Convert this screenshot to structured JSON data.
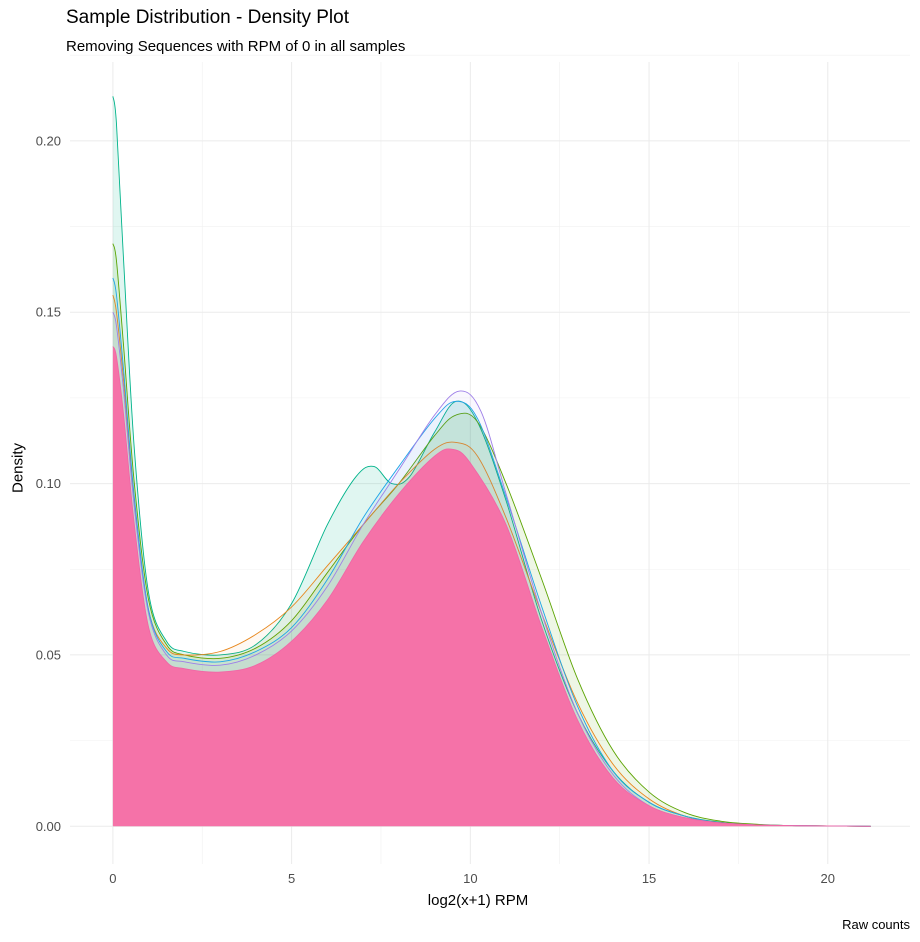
{
  "chart_data": {
    "type": "area",
    "title": "Sample Distribution - Density Plot",
    "subtitle": "Removing Sequences with RPM of 0 in all samples",
    "xlabel": "log2(x+1) RPM",
    "ylabel": "Density",
    "caption": "Raw counts",
    "xlim": [
      -1.2,
      22.3
    ],
    "ylim": [
      -0.011,
      0.223
    ],
    "x_ticks": [
      0,
      5,
      10,
      15,
      20
    ],
    "x_tick_labels": [
      "0",
      "5",
      "10",
      "15",
      "20"
    ],
    "y_ticks": [
      0.0,
      0.05,
      0.1,
      0.15,
      0.2
    ],
    "y_tick_labels": [
      "0.00",
      "0.05",
      "0.10",
      "0.15",
      "0.20"
    ],
    "grid": true,
    "legend": "none",
    "series": [
      {
        "color": "#00B38A",
        "fill": "#00B38A",
        "opacity": 0.12,
        "x": [
          0,
          0.1,
          0.3,
          0.6,
          1.0,
          1.5,
          2.0,
          3.0,
          4.0,
          5.0,
          6.0,
          6.8,
          7.3,
          7.8,
          8.3,
          9.0,
          9.6,
          10.2,
          11.0,
          12.0,
          13.0,
          14.0,
          15.0,
          16.0,
          17.0,
          18.0,
          19.0,
          20.0,
          21.2
        ],
        "y": [
          0.213,
          0.205,
          0.165,
          0.11,
          0.068,
          0.054,
          0.051,
          0.05,
          0.053,
          0.065,
          0.088,
          0.102,
          0.105,
          0.1,
          0.102,
          0.115,
          0.124,
          0.118,
          0.095,
          0.06,
          0.033,
          0.016,
          0.007,
          0.003,
          0.0012,
          0.0005,
          0.0002,
          0.0001,
          0
        ]
      },
      {
        "color": "#5BA300",
        "fill": "#5BA300",
        "opacity": 0.1,
        "x": [
          0,
          0.1,
          0.3,
          0.6,
          1.0,
          1.5,
          2.0,
          3.0,
          4.0,
          5.0,
          6.0,
          7.0,
          8.0,
          9.0,
          9.6,
          10.2,
          11.0,
          12.0,
          13.0,
          14.0,
          15.0,
          16.0,
          17.0,
          18.0,
          19.0,
          20.0,
          21.2
        ],
        "y": [
          0.17,
          0.165,
          0.14,
          0.1,
          0.066,
          0.053,
          0.05,
          0.049,
          0.052,
          0.06,
          0.074,
          0.088,
          0.1,
          0.114,
          0.12,
          0.118,
          0.1,
          0.072,
          0.043,
          0.022,
          0.01,
          0.004,
          0.0015,
          0.0006,
          0.0002,
          0.0001,
          0
        ]
      },
      {
        "color": "#E7861B",
        "fill": "#E7861B",
        "opacity": 0.06,
        "x": [
          0,
          0.1,
          0.3,
          0.6,
          1.0,
          1.5,
          2.0,
          3.0,
          4.0,
          5.0,
          6.0,
          7.0,
          8.0,
          9.0,
          9.6,
          10.2,
          11.0,
          12.0,
          13.0,
          14.0,
          15.0,
          16.0,
          17.0,
          18.0,
          19.0,
          20.0,
          21.2
        ],
        "y": [
          0.155,
          0.15,
          0.13,
          0.095,
          0.063,
          0.052,
          0.05,
          0.051,
          0.056,
          0.064,
          0.076,
          0.088,
          0.1,
          0.11,
          0.112,
          0.108,
          0.09,
          0.062,
          0.036,
          0.018,
          0.008,
          0.003,
          0.001,
          0.0004,
          0.0002,
          0.0001,
          0
        ]
      },
      {
        "color": "#1FA5E8",
        "fill": "#1FA5E8",
        "opacity": 0.06,
        "x": [
          0,
          0.1,
          0.3,
          0.6,
          1.0,
          1.5,
          2.0,
          3.0,
          4.0,
          5.0,
          6.0,
          7.0,
          8.0,
          9.0,
          9.6,
          10.2,
          11.0,
          12.0,
          13.0,
          14.0,
          15.0,
          16.0,
          17.0,
          18.0,
          19.0,
          20.0,
          21.2
        ],
        "y": [
          0.16,
          0.155,
          0.133,
          0.096,
          0.063,
          0.051,
          0.049,
          0.048,
          0.051,
          0.058,
          0.072,
          0.09,
          0.105,
          0.119,
          0.124,
          0.119,
          0.096,
          0.064,
          0.035,
          0.016,
          0.007,
          0.003,
          0.001,
          0.0004,
          0.0002,
          0.0001,
          0
        ]
      },
      {
        "color": "#9E7FE8",
        "fill": "#9E7FE8",
        "opacity": 0.06,
        "x": [
          0,
          0.1,
          0.3,
          0.6,
          1.0,
          1.5,
          2.0,
          3.0,
          4.0,
          5.0,
          6.0,
          7.0,
          8.0,
          9.0,
          9.7,
          10.3,
          11.0,
          12.0,
          13.0,
          14.0,
          15.0,
          16.0,
          17.0,
          18.0,
          19.0,
          20.0,
          21.2
        ],
        "y": [
          0.15,
          0.146,
          0.127,
          0.093,
          0.062,
          0.05,
          0.048,
          0.047,
          0.05,
          0.057,
          0.07,
          0.088,
          0.104,
          0.12,
          0.127,
          0.121,
          0.097,
          0.062,
          0.033,
          0.015,
          0.006,
          0.0025,
          0.001,
          0.0004,
          0.0002,
          0.0001,
          0
        ]
      },
      {
        "color": "#F067A6",
        "fill": "#F572A8",
        "opacity": 1.0,
        "x": [
          0,
          0.1,
          0.3,
          0.6,
          1.0,
          1.5,
          2.0,
          3.0,
          4.0,
          5.0,
          6.0,
          7.0,
          8.0,
          9.0,
          9.5,
          10.0,
          11.0,
          12.0,
          13.0,
          14.0,
          15.0,
          16.0,
          17.0,
          18.0,
          19.0,
          20.0,
          21.2
        ],
        "y": [
          0.14,
          0.137,
          0.12,
          0.088,
          0.058,
          0.048,
          0.046,
          0.045,
          0.047,
          0.054,
          0.066,
          0.083,
          0.097,
          0.108,
          0.11,
          0.106,
          0.088,
          0.058,
          0.031,
          0.014,
          0.006,
          0.0025,
          0.001,
          0.0004,
          0.0002,
          0.0001,
          0
        ]
      }
    ]
  }
}
